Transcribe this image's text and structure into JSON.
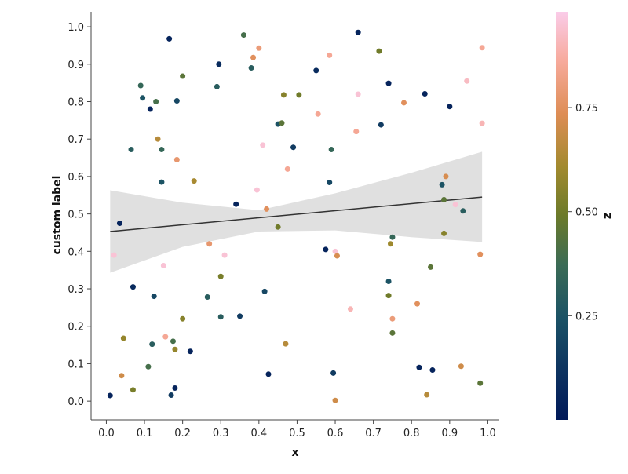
{
  "chart_data": {
    "type": "scatter",
    "title": "",
    "xlabel": "x",
    "ylabel": "custom label",
    "xlim": [
      -0.04,
      1.03
    ],
    "ylim": [
      -0.05,
      1.04
    ],
    "xticks": [
      "0.0",
      "0.1",
      "0.2",
      "0.3",
      "0.4",
      "0.5",
      "0.6",
      "0.7",
      "0.8",
      "0.9",
      "1.0"
    ],
    "yticks": [
      "0.0",
      "0.1",
      "0.2",
      "0.3",
      "0.4",
      "0.5",
      "0.6",
      "0.7",
      "0.8",
      "0.9",
      "1.0"
    ],
    "grid": false,
    "colorbar": {
      "label": "z",
      "range": [
        0.0,
        0.98
      ],
      "ticks": [
        "0.25",
        "0.50",
        "0.75"
      ],
      "tick_values": [
        0.25,
        0.5,
        0.75
      ],
      "colormap": "batlow-like (navy → teal → olive → orange → pink)"
    },
    "points": [
      {
        "x": 0.01,
        "y": 0.015,
        "z": 0.05
      },
      {
        "x": 0.02,
        "y": 0.39,
        "z": 0.95
      },
      {
        "x": 0.035,
        "y": 0.475,
        "z": 0.05
      },
      {
        "x": 0.04,
        "y": 0.068,
        "z": 0.7
      },
      {
        "x": 0.045,
        "y": 0.168,
        "z": 0.58
      },
      {
        "x": 0.065,
        "y": 0.672,
        "z": 0.3
      },
      {
        "x": 0.07,
        "y": 0.305,
        "z": 0.08
      },
      {
        "x": 0.07,
        "y": 0.03,
        "z": 0.52
      },
      {
        "x": 0.09,
        "y": 0.843,
        "z": 0.35
      },
      {
        "x": 0.095,
        "y": 0.81,
        "z": 0.25
      },
      {
        "x": 0.11,
        "y": 0.092,
        "z": 0.4
      },
      {
        "x": 0.115,
        "y": 0.78,
        "z": 0.05
      },
      {
        "x": 0.12,
        "y": 0.152,
        "z": 0.3
      },
      {
        "x": 0.125,
        "y": 0.28,
        "z": 0.2
      },
      {
        "x": 0.13,
        "y": 0.8,
        "z": 0.4
      },
      {
        "x": 0.135,
        "y": 0.7,
        "z": 0.65
      },
      {
        "x": 0.145,
        "y": 0.585,
        "z": 0.25
      },
      {
        "x": 0.145,
        "y": 0.672,
        "z": 0.35
      },
      {
        "x": 0.15,
        "y": 0.362,
        "z": 0.95
      },
      {
        "x": 0.155,
        "y": 0.172,
        "z": 0.85
      },
      {
        "x": 0.165,
        "y": 0.968,
        "z": 0.05
      },
      {
        "x": 0.17,
        "y": 0.016,
        "z": 0.15
      },
      {
        "x": 0.175,
        "y": 0.16,
        "z": 0.4
      },
      {
        "x": 0.18,
        "y": 0.138,
        "z": 0.58
      },
      {
        "x": 0.18,
        "y": 0.035,
        "z": 0.05
      },
      {
        "x": 0.185,
        "y": 0.802,
        "z": 0.2
      },
      {
        "x": 0.185,
        "y": 0.645,
        "z": 0.78
      },
      {
        "x": 0.2,
        "y": 0.868,
        "z": 0.45
      },
      {
        "x": 0.2,
        "y": 0.22,
        "z": 0.55
      },
      {
        "x": 0.22,
        "y": 0.133,
        "z": 0.05
      },
      {
        "x": 0.23,
        "y": 0.588,
        "z": 0.62
      },
      {
        "x": 0.265,
        "y": 0.278,
        "z": 0.3
      },
      {
        "x": 0.27,
        "y": 0.42,
        "z": 0.78
      },
      {
        "x": 0.29,
        "y": 0.84,
        "z": 0.3
      },
      {
        "x": 0.295,
        "y": 0.9,
        "z": 0.08
      },
      {
        "x": 0.3,
        "y": 0.333,
        "z": 0.52
      },
      {
        "x": 0.3,
        "y": 0.225,
        "z": 0.3
      },
      {
        "x": 0.31,
        "y": 0.39,
        "z": 0.95
      },
      {
        "x": 0.34,
        "y": 0.526,
        "z": 0.05
      },
      {
        "x": 0.35,
        "y": 0.227,
        "z": 0.15
      },
      {
        "x": 0.36,
        "y": 0.978,
        "z": 0.4
      },
      {
        "x": 0.38,
        "y": 0.89,
        "z": 0.3
      },
      {
        "x": 0.385,
        "y": 0.918,
        "z": 0.75
      },
      {
        "x": 0.395,
        "y": 0.564,
        "z": 0.95
      },
      {
        "x": 0.4,
        "y": 0.943,
        "z": 0.8
      },
      {
        "x": 0.41,
        "y": 0.684,
        "z": 0.95
      },
      {
        "x": 0.415,
        "y": 0.293,
        "z": 0.2
      },
      {
        "x": 0.42,
        "y": 0.513,
        "z": 0.75
      },
      {
        "x": 0.425,
        "y": 0.072,
        "z": 0.05
      },
      {
        "x": 0.45,
        "y": 0.74,
        "z": 0.25
      },
      {
        "x": 0.45,
        "y": 0.465,
        "z": 0.5
      },
      {
        "x": 0.46,
        "y": 0.743,
        "z": 0.45
      },
      {
        "x": 0.465,
        "y": 0.818,
        "z": 0.55
      },
      {
        "x": 0.47,
        "y": 0.153,
        "z": 0.65
      },
      {
        "x": 0.475,
        "y": 0.62,
        "z": 0.85
      },
      {
        "x": 0.49,
        "y": 0.678,
        "z": 0.15
      },
      {
        "x": 0.505,
        "y": 0.818,
        "z": 0.5
      },
      {
        "x": 0.55,
        "y": 0.883,
        "z": 0.08
      },
      {
        "x": 0.555,
        "y": 0.767,
        "z": 0.85
      },
      {
        "x": 0.575,
        "y": 0.405,
        "z": 0.05
      },
      {
        "x": 0.585,
        "y": 0.924,
        "z": 0.85
      },
      {
        "x": 0.585,
        "y": 0.584,
        "z": 0.2
      },
      {
        "x": 0.59,
        "y": 0.672,
        "z": 0.35
      },
      {
        "x": 0.595,
        "y": 0.075,
        "z": 0.15
      },
      {
        "x": 0.6,
        "y": 0.4,
        "z": 0.95
      },
      {
        "x": 0.6,
        "y": 0.002,
        "z": 0.7
      },
      {
        "x": 0.605,
        "y": 0.388,
        "z": 0.72
      },
      {
        "x": 0.64,
        "y": 0.246,
        "z": 0.9
      },
      {
        "x": 0.655,
        "y": 0.72,
        "z": 0.85
      },
      {
        "x": 0.66,
        "y": 0.985,
        "z": 0.05
      },
      {
        "x": 0.66,
        "y": 0.82,
        "z": 0.95
      },
      {
        "x": 0.715,
        "y": 0.935,
        "z": 0.5
      },
      {
        "x": 0.72,
        "y": 0.738,
        "z": 0.15
      },
      {
        "x": 0.74,
        "y": 0.849,
        "z": 0.05
      },
      {
        "x": 0.74,
        "y": 0.32,
        "z": 0.25
      },
      {
        "x": 0.74,
        "y": 0.282,
        "z": 0.5
      },
      {
        "x": 0.745,
        "y": 0.42,
        "z": 0.6
      },
      {
        "x": 0.75,
        "y": 0.438,
        "z": 0.35
      },
      {
        "x": 0.75,
        "y": 0.22,
        "z": 0.8
      },
      {
        "x": 0.75,
        "y": 0.182,
        "z": 0.45
      },
      {
        "x": 0.78,
        "y": 0.797,
        "z": 0.75
      },
      {
        "x": 0.815,
        "y": 0.26,
        "z": 0.75
      },
      {
        "x": 0.82,
        "y": 0.09,
        "z": 0.05
      },
      {
        "x": 0.835,
        "y": 0.821,
        "z": 0.05
      },
      {
        "x": 0.84,
        "y": 0.017,
        "z": 0.65
      },
      {
        "x": 0.85,
        "y": 0.358,
        "z": 0.45
      },
      {
        "x": 0.855,
        "y": 0.083,
        "z": 0.05
      },
      {
        "x": 0.88,
        "y": 0.578,
        "z": 0.25
      },
      {
        "x": 0.885,
        "y": 0.538,
        "z": 0.45
      },
      {
        "x": 0.885,
        "y": 0.448,
        "z": 0.55
      },
      {
        "x": 0.89,
        "y": 0.6,
        "z": 0.72
      },
      {
        "x": 0.9,
        "y": 0.787,
        "z": 0.05
      },
      {
        "x": 0.915,
        "y": 0.525,
        "z": 0.95
      },
      {
        "x": 0.93,
        "y": 0.093,
        "z": 0.7
      },
      {
        "x": 0.935,
        "y": 0.508,
        "z": 0.3
      },
      {
        "x": 0.945,
        "y": 0.855,
        "z": 0.92
      },
      {
        "x": 0.98,
        "y": 0.048,
        "z": 0.45
      },
      {
        "x": 0.98,
        "y": 0.392,
        "z": 0.75
      },
      {
        "x": 0.985,
        "y": 0.742,
        "z": 0.9
      },
      {
        "x": 0.985,
        "y": 0.944,
        "z": 0.85
      }
    ],
    "regression": {
      "x": [
        0.01,
        0.985
      ],
      "y": [
        0.453,
        0.545
      ],
      "ci_x": [
        0.01,
        0.2,
        0.4,
        0.6,
        0.8,
        0.985
      ],
      "ci_low": [
        0.343,
        0.412,
        0.453,
        0.456,
        0.438,
        0.425
      ],
      "ci_high": [
        0.563,
        0.53,
        0.51,
        0.555,
        0.61,
        0.666
      ],
      "line_color": "#333333",
      "band_color": "#e0e0e0"
    }
  }
}
